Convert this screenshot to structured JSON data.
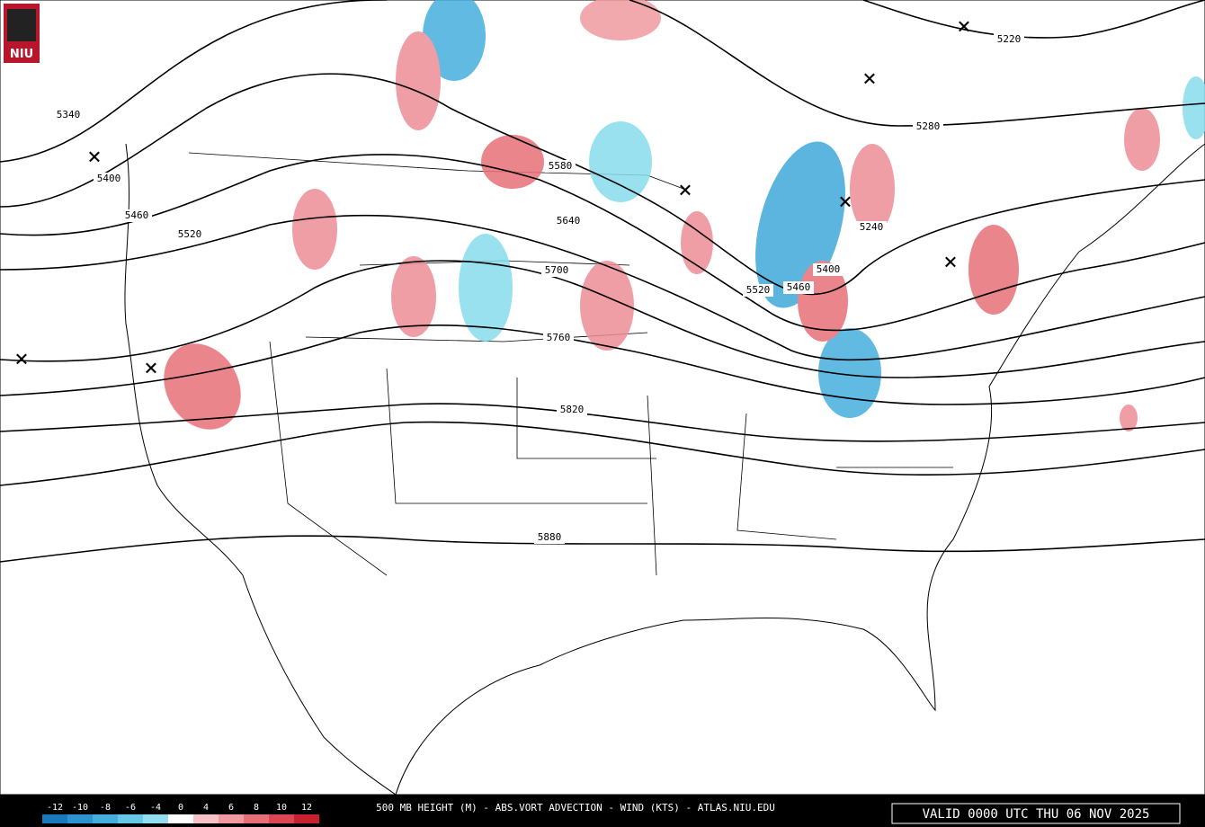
{
  "logo": "NIU",
  "title": "500 MB HEIGHT (M) - ABS.VORT ADVECTION - WIND (KTS) - ATLAS.NIU.EDU",
  "valid": "VALID 0000 UTC THU 06 NOV 2025",
  "colorbar": {
    "values": [
      -12,
      -10,
      -8,
      -6,
      -4,
      0,
      4,
      6,
      8,
      10,
      12
    ],
    "colors": [
      "#1a78bd",
      "#2b93cf",
      "#44aedd",
      "#66c7e6",
      "#92def0",
      "#ffffff",
      "#f6c2c5",
      "#f09aa0",
      "#e86f78",
      "#dc4552",
      "#c8202e"
    ]
  },
  "height_labels": [
    5220,
    5280,
    5340,
    5400,
    5460,
    5520,
    5580,
    5640,
    5700,
    5760,
    5820,
    5880,
    5240,
    5400,
    5520,
    5460
  ]
}
